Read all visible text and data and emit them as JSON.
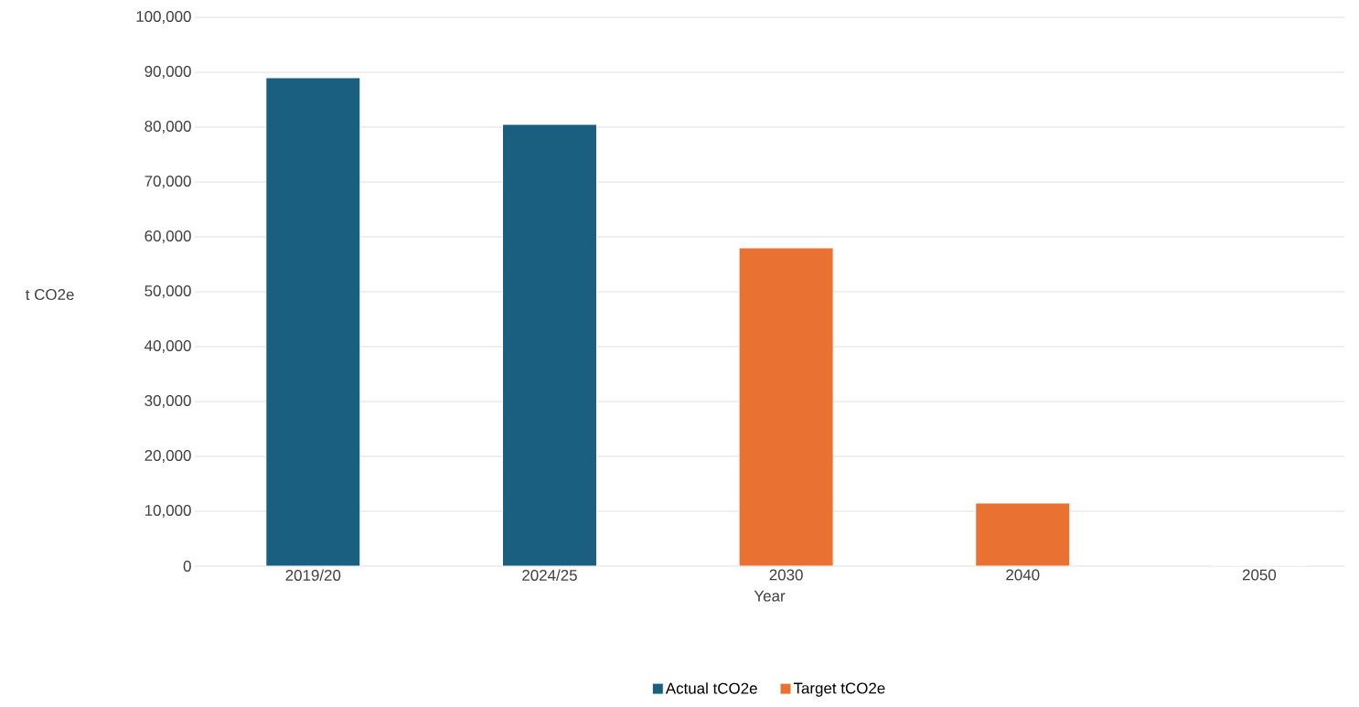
{
  "chart_data": {
    "type": "bar",
    "xlabel": "Year",
    "ylabel": "t CO2e",
    "categories": [
      "2019/20",
      "2024/25",
      "2030",
      "2040",
      "2050"
    ],
    "series": [
      {
        "name": "Actual tCO2e",
        "color": "#1a5e80",
        "values": [
          89000,
          80500,
          null,
          null,
          null
        ]
      },
      {
        "name": "Target tCO2e",
        "color": "#e97132",
        "values": [
          null,
          null,
          58000,
          11500,
          0
        ]
      }
    ],
    "ylim": [
      0,
      100000
    ],
    "yticks": [
      {
        "value": 0,
        "label": "0"
      },
      {
        "value": 10000,
        "label": "10,000"
      },
      {
        "value": 20000,
        "label": "20,000"
      },
      {
        "value": 30000,
        "label": "30,000"
      },
      {
        "value": 40000,
        "label": "40,000"
      },
      {
        "value": 50000,
        "label": "50,000"
      },
      {
        "value": 60000,
        "label": "60,000"
      },
      {
        "value": 70000,
        "label": "70,000"
      },
      {
        "value": 80000,
        "label": "80,000"
      },
      {
        "value": 90000,
        "label": "90,000"
      },
      {
        "value": 100000,
        "label": "100,000"
      }
    ],
    "grid": "y",
    "legend": "bottom"
  }
}
